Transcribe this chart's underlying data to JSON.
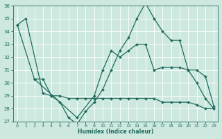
{
  "xlabel": "Humidex (Indice chaleur)",
  "bg_color": "#cde8df",
  "line_color": "#1e6b5e",
  "grid_color": "#ffffff",
  "xlim": [
    -0.5,
    23.5
  ],
  "ylim": [
    27,
    36
  ],
  "yticks": [
    27,
    28,
    29,
    30,
    31,
    32,
    33,
    34,
    35,
    36
  ],
  "xticks": [
    0,
    1,
    2,
    3,
    4,
    5,
    6,
    7,
    8,
    9,
    10,
    11,
    12,
    13,
    14,
    15,
    16,
    17,
    18,
    19,
    20,
    21,
    22,
    23
  ],
  "line1_x": [
    0,
    1,
    3,
    4,
    5,
    6,
    7,
    8,
    9,
    10,
    11,
    12,
    13,
    14,
    15,
    16,
    17,
    18,
    19,
    20,
    21,
    22,
    23
  ],
  "line1_y": [
    34.5,
    35.0,
    29.2,
    29.0,
    28.5,
    27.3,
    26.8,
    27.8,
    28.5,
    29.5,
    31.0,
    32.5,
    33.5,
    35.0,
    36.2,
    35.0,
    34.0,
    33.3,
    33.3,
    31.0,
    30.0,
    28.8,
    28.0
  ],
  "line2_x": [
    2,
    3,
    4,
    5,
    6,
    7,
    8,
    9,
    10,
    11,
    12,
    13,
    14,
    15,
    16,
    17,
    18,
    19,
    20,
    21,
    22,
    23
  ],
  "line2_y": [
    30.3,
    30.3,
    29.0,
    29.0,
    28.8,
    28.8,
    28.8,
    28.8,
    28.8,
    28.8,
    28.8,
    28.8,
    28.8,
    28.8,
    28.8,
    28.5,
    28.5,
    28.5,
    28.5,
    28.3,
    28.0,
    28.0
  ],
  "line3_x": [
    0,
    2,
    7,
    9,
    10,
    11,
    12,
    13,
    14,
    15,
    16,
    17,
    18,
    19,
    20,
    21,
    22,
    23
  ],
  "line3_y": [
    34.5,
    30.3,
    27.3,
    29.0,
    31.0,
    32.5,
    32.0,
    32.5,
    33.0,
    33.0,
    31.0,
    31.2,
    31.2,
    31.2,
    31.0,
    31.0,
    30.5,
    28.2
  ]
}
